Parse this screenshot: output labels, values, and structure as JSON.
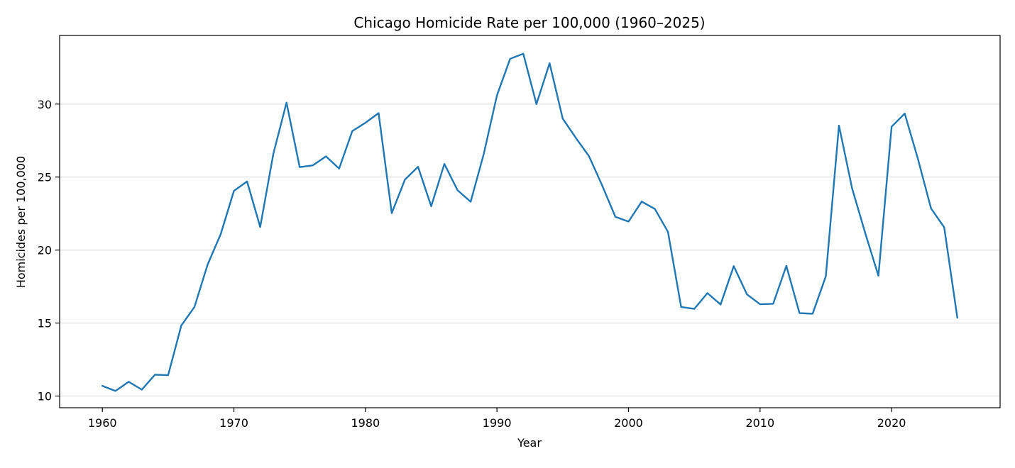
{
  "chart_data": {
    "type": "line",
    "title": "Chicago Homicide Rate per 100,000 (1960–2025)",
    "xlabel": "Year",
    "ylabel": "Homicides per 100,000",
    "xlim": [
      1956.75,
      2028.25
    ],
    "ylim": [
      9.2,
      34.7
    ],
    "xticks": [
      1960,
      1970,
      1980,
      1990,
      2000,
      2010,
      2020
    ],
    "yticks": [
      10,
      15,
      20,
      25,
      30
    ],
    "grid": {
      "y": true,
      "x": false
    },
    "series": [
      {
        "color": "#1f77b4",
        "x": [
          1960,
          1961,
          1962,
          1963,
          1964,
          1965,
          1966,
          1967,
          1968,
          1969,
          1970,
          1971,
          1972,
          1973,
          1974,
          1975,
          1976,
          1977,
          1978,
          1979,
          1980,
          1981,
          1982,
          1983,
          1984,
          1985,
          1986,
          1987,
          1988,
          1989,
          1990,
          1991,
          1992,
          1993,
          1994,
          1995,
          1996,
          1997,
          1998,
          1999,
          2000,
          2001,
          2002,
          2003,
          2004,
          2005,
          2006,
          2007,
          2008,
          2009,
          2010,
          2011,
          2012,
          2013,
          2014,
          2015,
          2016,
          2017,
          2018,
          2019,
          2020,
          2021,
          2022,
          2023,
          2024,
          2025
        ],
        "y": [
          10.7,
          10.35,
          10.98,
          10.44,
          11.46,
          11.43,
          14.83,
          16.1,
          19.0,
          21.1,
          24.05,
          24.7,
          21.58,
          26.6,
          30.1,
          25.68,
          25.8,
          26.42,
          25.58,
          28.15,
          28.72,
          29.38,
          22.53,
          24.82,
          25.7,
          23.0,
          25.9,
          24.1,
          23.31,
          26.6,
          30.6,
          33.1,
          33.45,
          30.0,
          32.8,
          29.0,
          27.68,
          26.42,
          24.42,
          22.28,
          21.95,
          23.32,
          22.82,
          21.25,
          16.1,
          15.97,
          17.05,
          16.27,
          18.9,
          16.97,
          16.29,
          16.32,
          18.92,
          15.68,
          15.64,
          18.2,
          28.53,
          24.22,
          21.15,
          18.24,
          28.45,
          29.35,
          26.25,
          22.85,
          21.56,
          15.36
        ]
      }
    ]
  }
}
